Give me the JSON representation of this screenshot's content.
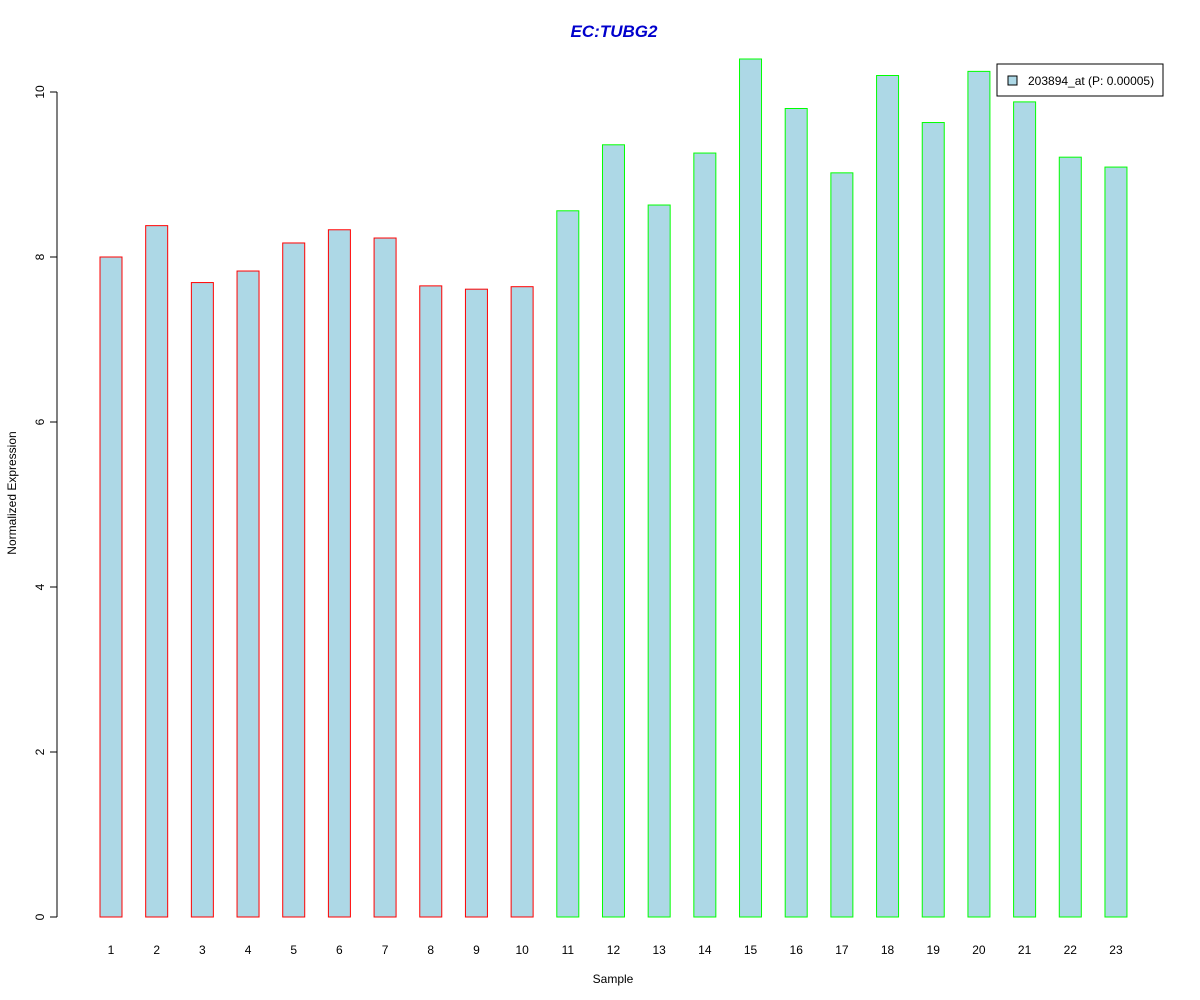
{
  "chart_data": {
    "type": "bar",
    "title": "EC:TUBG2",
    "xlabel": "Sample",
    "ylabel": "Normalized Expression",
    "categories": [
      "1",
      "2",
      "3",
      "4",
      "5",
      "6",
      "7",
      "8",
      "9",
      "10",
      "11",
      "12",
      "13",
      "14",
      "15",
      "16",
      "17",
      "18",
      "19",
      "20",
      "21",
      "22",
      "23"
    ],
    "series": [
      {
        "name": "203894_at (P: 0.00005)",
        "values": [
          8.0,
          8.38,
          7.69,
          7.83,
          8.17,
          8.33,
          8.23,
          7.65,
          7.61,
          7.64,
          8.56,
          9.36,
          8.63,
          9.26,
          10.4,
          9.8,
          9.02,
          10.2,
          9.63,
          10.25,
          9.88,
          9.21,
          9.09
        ],
        "fill": "#add8e6"
      }
    ],
    "group_colors": [
      "#ff0000",
      "#ff0000",
      "#ff0000",
      "#ff0000",
      "#ff0000",
      "#ff0000",
      "#ff0000",
      "#ff0000",
      "#ff0000",
      "#ff0000",
      "#00ff00",
      "#00ff00",
      "#00ff00",
      "#00ff00",
      "#00ff00",
      "#00ff00",
      "#00ff00",
      "#00ff00",
      "#00ff00",
      "#00ff00",
      "#00ff00",
      "#00ff00",
      "#00ff00"
    ],
    "yticks": [
      0,
      2,
      4,
      6,
      8,
      10
    ],
    "ylim": [
      0,
      10.4
    ],
    "grid": false,
    "legend_position": "top-right",
    "title_color": "#0000cc"
  }
}
